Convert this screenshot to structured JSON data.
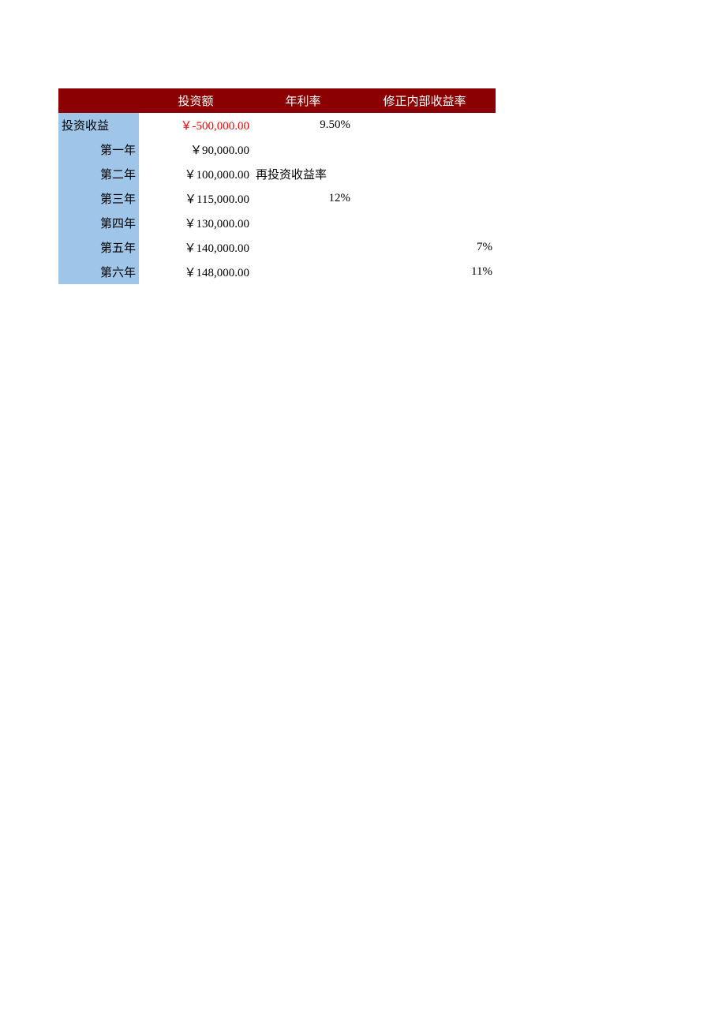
{
  "table": {
    "colors": {
      "header_bg": "#8b0000",
      "header_text": "#ffffff",
      "label_bg": "#9fc5e8",
      "negative_text": "#ff0000",
      "body_text": "#000000",
      "body_bg": "#ffffff"
    },
    "typography": {
      "font_family": "SimSun",
      "font_size_pt": 11
    },
    "columns": {
      "label_width": 102,
      "amount_width": 144,
      "rate_width": 128,
      "mirr_width": 180
    },
    "headers": {
      "col1": "",
      "col2": "投资额",
      "col3": "年利率",
      "col4": "修正内部收益率"
    },
    "rows": [
      {
        "label": "投资收益",
        "amount": "￥-500,000.00",
        "amount_negative": true,
        "rate": "9.50%",
        "mirr": ""
      },
      {
        "label": "第一年",
        "amount": "￥90,000.00",
        "amount_negative": false,
        "rate": "",
        "mirr": ""
      },
      {
        "label": "第二年",
        "amount": "￥100,000.00",
        "amount_negative": false,
        "rate": "再投资收益率",
        "rate_is_label": true,
        "mirr": ""
      },
      {
        "label": "第三年",
        "amount": "￥115,000.00",
        "amount_negative": false,
        "rate": "12%",
        "mirr": ""
      },
      {
        "label": "第四年",
        "amount": "￥130,000.00",
        "amount_negative": false,
        "rate": "",
        "mirr": ""
      },
      {
        "label": "第五年",
        "amount": "￥140,000.00",
        "amount_negative": false,
        "rate": "",
        "mirr": "7%"
      },
      {
        "label": "第六年",
        "amount": "￥148,000.00",
        "amount_negative": false,
        "rate": "",
        "mirr": "11%"
      }
    ]
  }
}
